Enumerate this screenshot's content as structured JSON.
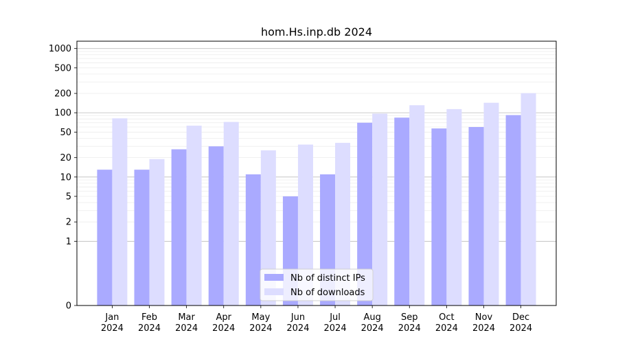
{
  "chart_data": {
    "type": "bar",
    "title": "hom.Hs.inp.db 2024",
    "xlabel": "",
    "ylabel": "",
    "scale": "symlog",
    "grid": true,
    "legend_position": "lower-center",
    "categories": [
      {
        "month": "Jan",
        "year": "2024"
      },
      {
        "month": "Feb",
        "year": "2024"
      },
      {
        "month": "Mar",
        "year": "2024"
      },
      {
        "month": "Apr",
        "year": "2024"
      },
      {
        "month": "May",
        "year": "2024"
      },
      {
        "month": "Jun",
        "year": "2024"
      },
      {
        "month": "Jul",
        "year": "2024"
      },
      {
        "month": "Aug",
        "year": "2024"
      },
      {
        "month": "Sep",
        "year": "2024"
      },
      {
        "month": "Oct",
        "year": "2024"
      },
      {
        "month": "Nov",
        "year": "2024"
      },
      {
        "month": "Dec",
        "year": "2024"
      }
    ],
    "series": [
      {
        "name": "Nb of distinct IPs",
        "color": "#aaaaff",
        "values": [
          13,
          13,
          27,
          30,
          11,
          5,
          11,
          70,
          84,
          57,
          60,
          92
        ]
      },
      {
        "name": "Nb of downloads",
        "color": "#ddddff",
        "values": [
          82,
          19,
          63,
          72,
          26,
          32,
          34,
          97,
          131,
          114,
          143,
          202
        ]
      }
    ],
    "yticks": [
      {
        "value": 0,
        "label": "0"
      },
      {
        "value": 1,
        "label": "1"
      },
      {
        "value": 2,
        "label": "2"
      },
      {
        "value": 5,
        "label": "5"
      },
      {
        "value": 10,
        "label": "10"
      },
      {
        "value": 20,
        "label": "20"
      },
      {
        "value": 50,
        "label": "50"
      },
      {
        "value": 100,
        "label": "100"
      },
      {
        "value": 200,
        "label": "200"
      },
      {
        "value": 500,
        "label": "500"
      },
      {
        "value": 1000,
        "label": "1000"
      }
    ],
    "ylim": [
      0,
      1300
    ]
  }
}
